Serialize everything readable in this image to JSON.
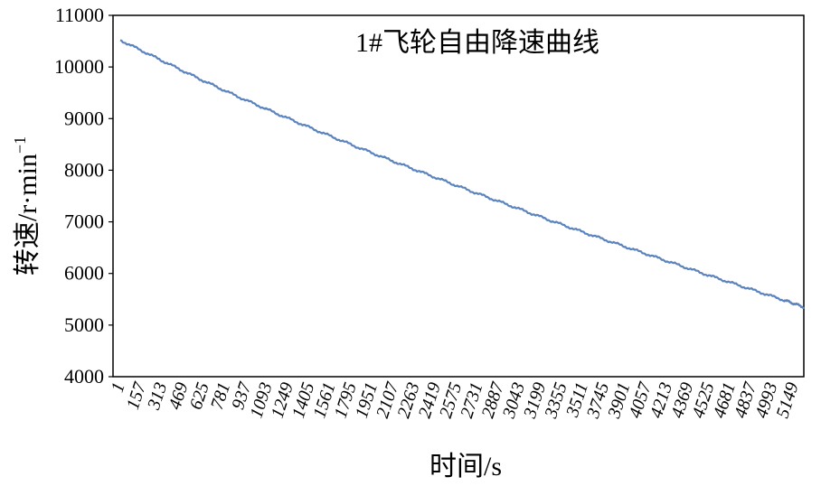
{
  "chart_data": {
    "type": "line",
    "title": "1#飞轮自由降速曲线",
    "xlabel": "时间/s",
    "ylabel_main": "转速/r·min",
    "ylabel_sup": "−1",
    "x_tick_labels": [
      "1",
      "157",
      "313",
      "469",
      "625",
      "781",
      "937",
      "1093",
      "1249",
      "1405",
      "1561",
      "1795",
      "1951",
      "2107",
      "2263",
      "2419",
      "2575",
      "2731",
      "2887",
      "3043",
      "3199",
      "3355",
      "3511",
      "3745",
      "3901",
      "4057",
      "4213",
      "4369",
      "4525",
      "4681",
      "4837",
      "4993",
      "5149"
    ],
    "y_tick_labels": [
      "4000",
      "5000",
      "6000",
      "7000",
      "8000",
      "9000",
      "10000",
      "11000"
    ],
    "ylim": [
      4000,
      11000
    ],
    "xlim": [
      1,
      5250
    ],
    "grid": false,
    "series": [
      {
        "color": "#5b84bf",
        "points": [
          [
            1,
            10520
          ],
          [
            300,
            10150
          ],
          [
            600,
            9780
          ],
          [
            900,
            9430
          ],
          [
            1200,
            9100
          ],
          [
            1500,
            8780
          ],
          [
            1800,
            8470
          ],
          [
            2100,
            8170
          ],
          [
            2400,
            7880
          ],
          [
            2700,
            7590
          ],
          [
            3000,
            7310
          ],
          [
            3300,
            7030
          ],
          [
            3600,
            6760
          ],
          [
            3900,
            6500
          ],
          [
            4200,
            6240
          ],
          [
            4500,
            5980
          ],
          [
            4800,
            5730
          ],
          [
            5100,
            5480
          ],
          [
            5250,
            5350
          ]
        ]
      }
    ]
  }
}
